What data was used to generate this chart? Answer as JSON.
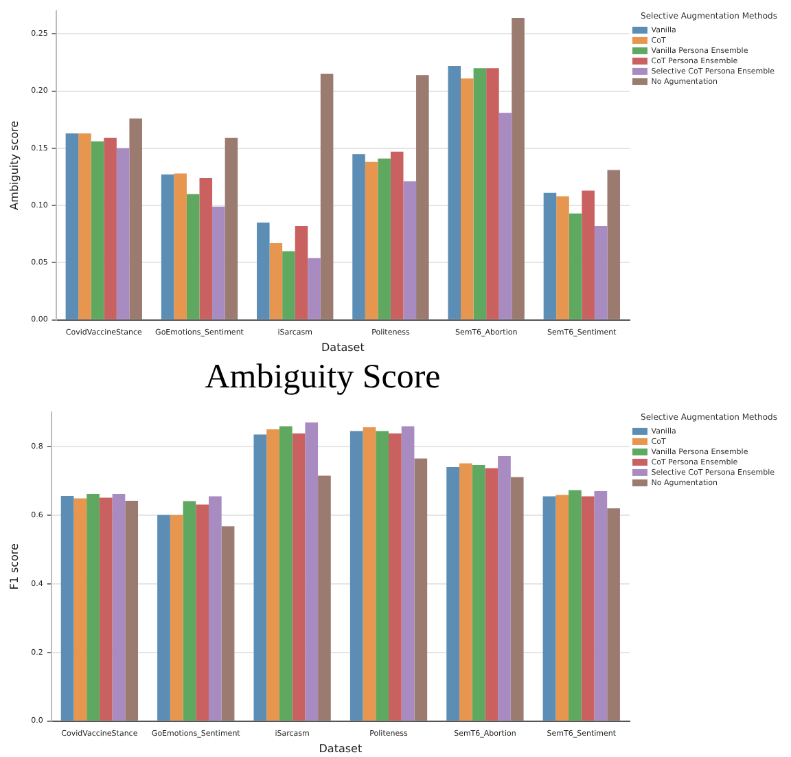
{
  "chart_data": [
    {
      "type": "bar",
      "xlabel": "Dataset",
      "ylabel": "Ambiguity score",
      "legend_title": "Selective Augmentation Methods",
      "categories": [
        "CovidVaccineStance",
        "GoEmotions_Sentiment",
        "iSarcasm",
        "Politeness",
        "SemT6_Abortion",
        "SemT6_Sentiment"
      ],
      "series": [
        {
          "name": "Vanilla",
          "color": "#5b8db5",
          "values": [
            0.163,
            0.127,
            0.085,
            0.145,
            0.222,
            0.111
          ]
        },
        {
          "name": "CoT",
          "color": "#e6964e",
          "values": [
            0.163,
            0.128,
            0.067,
            0.138,
            0.211,
            0.108
          ]
        },
        {
          "name": "Vanilla Persona Ensemble",
          "color": "#5ea860",
          "values": [
            0.156,
            0.11,
            0.06,
            0.141,
            0.22,
            0.093
          ]
        },
        {
          "name": "CoT Persona Ensemble",
          "color": "#c96161",
          "values": [
            0.159,
            0.124,
            0.082,
            0.147,
            0.22,
            0.113
          ]
        },
        {
          "name": "Selective CoT Persona Ensemble",
          "color": "#a88cc1",
          "values": [
            0.15,
            0.099,
            0.054,
            0.121,
            0.181,
            0.082
          ]
        },
        {
          "name": "No Agumentation",
          "color": "#9b7a70",
          "values": [
            0.176,
            0.159,
            0.215,
            0.214,
            0.264,
            0.131
          ]
        }
      ],
      "ylim": [
        0,
        0.27
      ],
      "yticks": [
        {
          "value": 0,
          "label": "0.00"
        },
        0.05,
        {
          "value": 0.1,
          "label": "0.10"
        },
        0.15,
        {
          "value": 0.2,
          "label": "0.20"
        },
        0.25
      ],
      "grid": "y",
      "legend": "top right"
    },
    {
      "type": "bar",
      "title": "Ambiguity Score",
      "xlabel": "Dataset",
      "ylabel": "F1 score",
      "legend_title": "Selective Augmentation Methods",
      "categories": [
        "CovidVaccineStance",
        "GoEmotions_Sentiment",
        "iSarcasm",
        "Politeness",
        "SemT6_Abortion",
        "SemT6_Sentiment"
      ],
      "series": [
        {
          "name": "Vanilla",
          "color": "#5b8db5",
          "values": [
            0.656,
            0.6,
            0.835,
            0.845,
            0.74,
            0.655
          ]
        },
        {
          "name": "CoT",
          "color": "#e6964e",
          "values": [
            0.649,
            0.6,
            0.85,
            0.856,
            0.751,
            0.659
          ]
        },
        {
          "name": "Vanilla Persona Ensemble",
          "color": "#5ea860",
          "values": [
            0.662,
            0.641,
            0.859,
            0.845,
            0.746,
            0.673
          ]
        },
        {
          "name": "CoT Persona Ensemble",
          "color": "#c96161",
          "values": [
            0.651,
            0.631,
            0.838,
            0.838,
            0.737,
            0.655
          ]
        },
        {
          "name": "Selective CoT Persona Ensemble",
          "color": "#a88cc1",
          "values": [
            0.662,
            0.655,
            0.87,
            0.859,
            0.772,
            0.67
          ]
        },
        {
          "name": "No Agumentation",
          "color": "#9b7a70",
          "values": [
            0.642,
            0.567,
            0.715,
            0.765,
            0.711,
            0.62
          ]
        }
      ],
      "ylim": [
        0,
        0.9
      ],
      "yticks": [
        {
          "value": 0,
          "label": "0.0"
        },
        {
          "value": 0.2,
          "label": "0.2"
        },
        {
          "value": 0.4,
          "label": "0.4"
        },
        {
          "value": 0.6,
          "label": "0.6"
        },
        {
          "value": 0.8,
          "label": "0.8"
        }
      ],
      "grid": "y",
      "legend": "top right"
    }
  ]
}
